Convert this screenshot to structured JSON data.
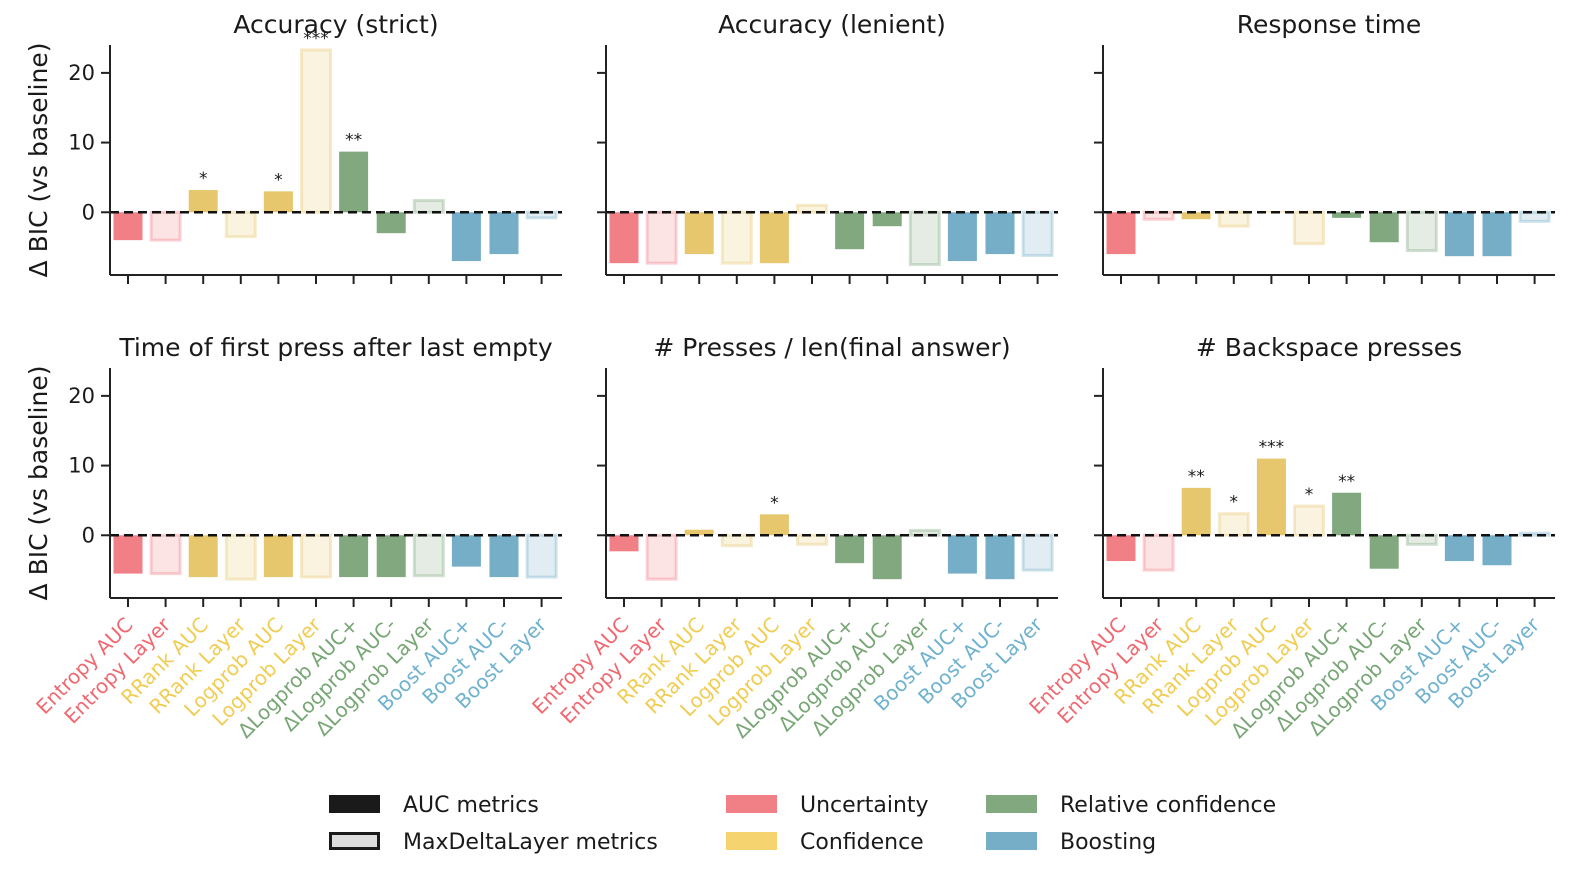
{
  "chart_data": {
    "type": "bar",
    "ylabel": "Δ BIC (vs baseline)",
    "ylim": [
      -9,
      24
    ],
    "yticks": [
      0,
      10,
      20
    ],
    "categories": [
      "Entropy AUC",
      "Entropy Layer",
      "RRank AUC",
      "RRank Layer",
      "Logprob AUC",
      "Logprob Layer",
      "ΔLogprob AUC+",
      "ΔLogprob AUC-",
      "ΔLogprob Layer",
      "Boost AUC+",
      "Boost AUC-",
      "Boost Layer"
    ],
    "category_group": [
      "Uncertainty",
      "Uncertainty",
      "Confidence",
      "Confidence",
      "Confidence",
      "Confidence",
      "Relative confidence",
      "Relative confidence",
      "Relative confidence",
      "Boosting",
      "Boosting",
      "Boosting"
    ],
    "category_metric": [
      "AUC",
      "Layer",
      "AUC",
      "Layer",
      "AUC",
      "Layer",
      "AUC",
      "AUC",
      "Layer",
      "AUC",
      "AUC",
      "Layer"
    ],
    "group_colors": {
      "Uncertainty": "#f07f86",
      "Confidence": "#e6c76e",
      "Relative confidence": "#82a87f",
      "Boosting": "#76aec8"
    },
    "group_label_colors": {
      "Uncertainty": "#f06870",
      "Confidence": "#f0cd52",
      "Relative confidence": "#78a675",
      "Boosting": "#6fb2cf"
    },
    "baseline_line": "dashed line at 0",
    "panels": [
      {
        "title": "Accuracy (strict)",
        "values": [
          -4.0,
          -4.0,
          3.2,
          -3.5,
          3.0,
          23.3,
          8.7,
          -3.0,
          1.7,
          -7.0,
          -6.0,
          -0.8
        ],
        "stars": [
          "",
          "",
          "*",
          "",
          "*",
          "***",
          "**",
          "",
          "",
          "",
          "",
          ""
        ]
      },
      {
        "title": "Accuracy (lenient)",
        "values": [
          -7.3,
          -7.3,
          -6.0,
          -7.3,
          -7.3,
          1.0,
          -5.3,
          -2.0,
          -7.5,
          -7.0,
          -6.0,
          -6.2
        ],
        "stars": [
          "",
          "",
          "",
          "",
          "",
          "",
          "",
          "",
          "",
          "",
          "",
          ""
        ]
      },
      {
        "title": "Response time",
        "values": [
          -6.0,
          -1.0,
          -1.0,
          -2.0,
          0.1,
          -4.5,
          -0.8,
          -4.3,
          -5.5,
          -6.3,
          -6.3,
          -1.3
        ],
        "stars": [
          "",
          "",
          "",
          "",
          "",
          "",
          "",
          "",
          "",
          "",
          "",
          ""
        ]
      },
      {
        "title": "Time of first press after last empty",
        "values": [
          -5.5,
          -5.5,
          -6.0,
          -6.3,
          -6.0,
          -6.0,
          -6.0,
          -6.0,
          -5.8,
          -4.5,
          -6.0,
          -6.0
        ],
        "stars": [
          "",
          "",
          "",
          "",
          "",
          "",
          "",
          "",
          "",
          "",
          "",
          ""
        ]
      },
      {
        "title": "# Presses / len(final answer)",
        "values": [
          -2.3,
          -6.3,
          0.8,
          -1.5,
          3.0,
          -1.3,
          -4.0,
          -6.3,
          0.7,
          -5.5,
          -6.3,
          -5.0
        ],
        "stars": [
          "",
          "",
          "",
          "",
          "*",
          "",
          "",
          "",
          "",
          "",
          "",
          ""
        ]
      },
      {
        "title": "# Backspace presses",
        "values": [
          -3.7,
          -5.0,
          6.8,
          3.1,
          11.0,
          4.2,
          6.1,
          -4.8,
          -1.3,
          -3.7,
          -4.3,
          0.3
        ],
        "stars": [
          "",
          "",
          "**",
          "*",
          "***",
          "*",
          "**",
          "",
          "",
          "",
          "",
          ""
        ]
      }
    ],
    "legend": {
      "items": [
        {
          "label": "AUC metrics",
          "style": "filled",
          "color": "#1a1a1a"
        },
        {
          "label": "MaxDeltaLayer metrics",
          "style": "outlined",
          "color": "#dddddd"
        },
        {
          "label": "Uncertainty",
          "style": "filled",
          "color": "#f07f86"
        },
        {
          "label": "Confidence",
          "style": "filled",
          "color": "#f5d36e"
        },
        {
          "label": "Relative confidence",
          "style": "filled",
          "color": "#82a87f"
        },
        {
          "label": "Boosting",
          "style": "filled",
          "color": "#76aec8"
        }
      ],
      "placement": "bottom-center"
    }
  }
}
